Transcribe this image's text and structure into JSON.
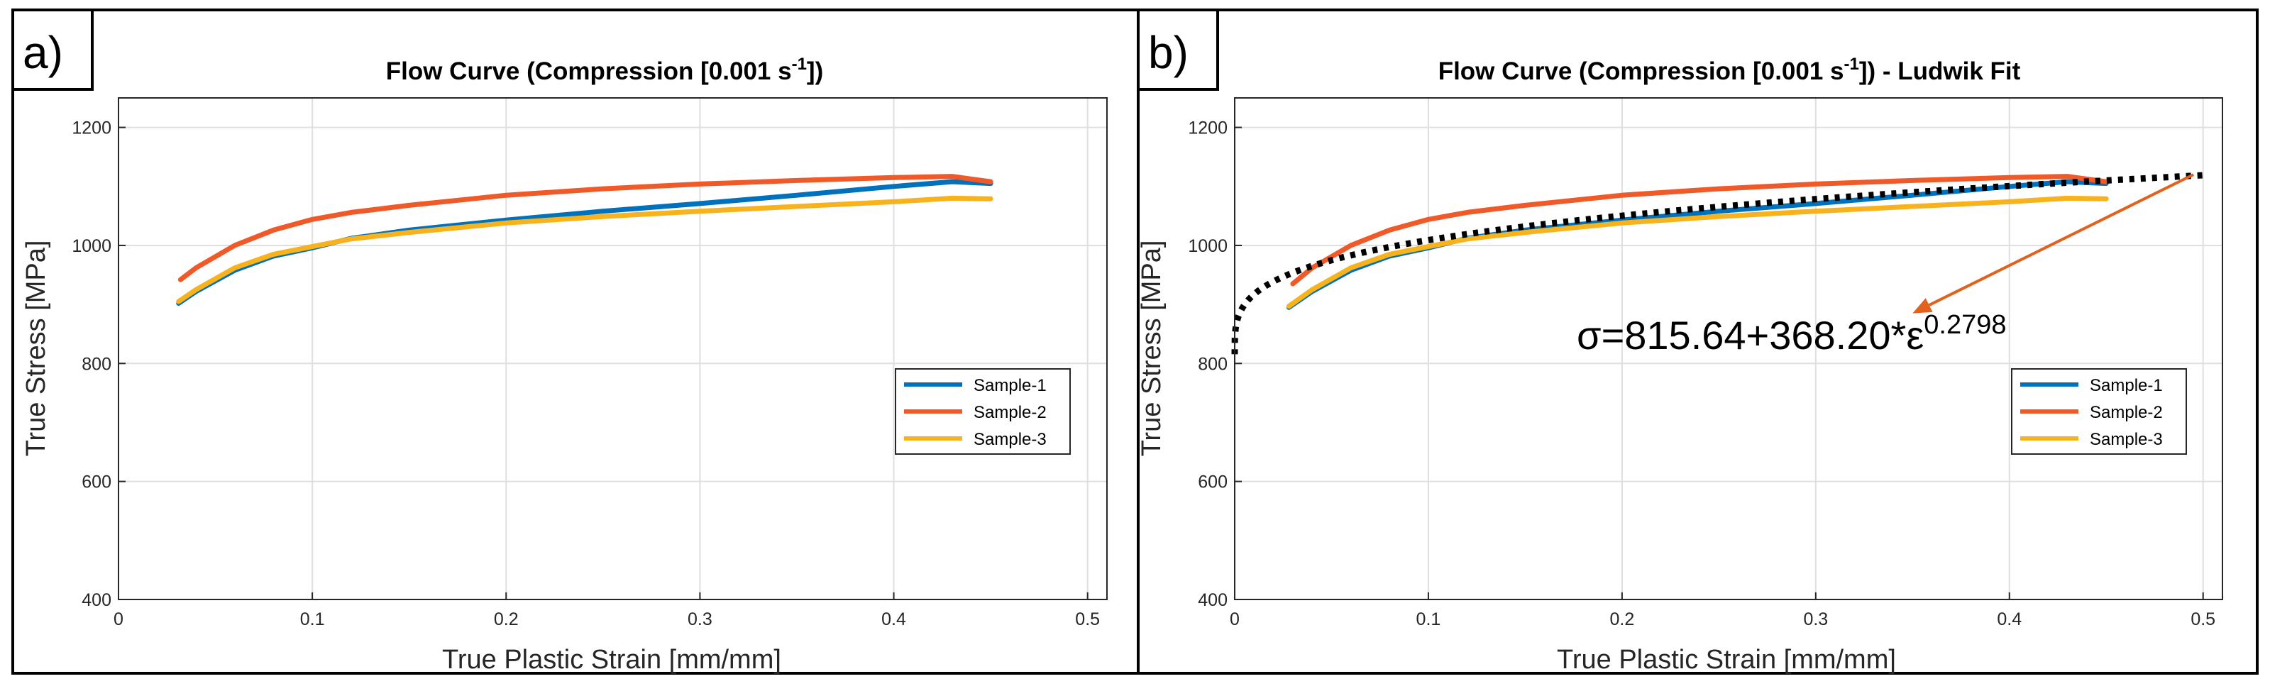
{
  "figure": {
    "colors": {
      "sample1": "#0072bd",
      "sample2": "#f05a28",
      "sample3": "#f7b21c",
      "fit": "#000000",
      "arrow": "#e2611d"
    }
  },
  "chart_data": [
    {
      "panel_label": "a)",
      "type": "line",
      "title_main": "Flow Curve (Compression [0.001 s",
      "title_sup": "-1",
      "title_tail": "])",
      "xlabel": "True Plastic Strain [mm/mm]",
      "ylabel": "True Stress [MPa]",
      "xlim": [
        0,
        0.51
      ],
      "ylim": [
        400,
        1250
      ],
      "xticks": [
        0,
        0.1,
        0.2,
        0.3,
        0.4,
        0.5
      ],
      "xtick_labels": [
        "0",
        "0.1",
        "0.2",
        "0.3",
        "0.4",
        "0.5"
      ],
      "yticks": [
        400,
        600,
        800,
        1000,
        1200
      ],
      "ytick_labels": [
        "400",
        "600",
        "800",
        "1000",
        "1200"
      ],
      "grid": true,
      "legend_position": "right",
      "legend": [
        "Sample-1",
        "Sample-2",
        "Sample-3"
      ],
      "series": [
        {
          "name": "Sample-1",
          "color": "#0072bd",
          "x": [
            0.031,
            0.04,
            0.06,
            0.08,
            0.1,
            0.12,
            0.15,
            0.2,
            0.25,
            0.3,
            0.35,
            0.4,
            0.43,
            0.45
          ],
          "y": [
            902,
            922,
            958,
            982,
            996,
            1012,
            1026,
            1043,
            1058,
            1071,
            1085,
            1100,
            1108,
            1105
          ]
        },
        {
          "name": "Sample-2",
          "color": "#f05a28",
          "x": [
            0.032,
            0.04,
            0.06,
            0.08,
            0.1,
            0.12,
            0.15,
            0.2,
            0.25,
            0.3,
            0.35,
            0.4,
            0.43,
            0.45
          ],
          "y": [
            942,
            962,
            1000,
            1026,
            1044,
            1056,
            1068,
            1085,
            1096,
            1104,
            1110,
            1115,
            1117,
            1108
          ]
        },
        {
          "name": "Sample-3",
          "color": "#f7b21c",
          "x": [
            0.031,
            0.04,
            0.06,
            0.08,
            0.1,
            0.12,
            0.15,
            0.2,
            0.25,
            0.3,
            0.35,
            0.4,
            0.43,
            0.45
          ],
          "y": [
            905,
            925,
            962,
            985,
            998,
            1011,
            1022,
            1038,
            1049,
            1058,
            1066,
            1074,
            1080,
            1079
          ]
        }
      ]
    },
    {
      "panel_label": "b)",
      "type": "line",
      "title_main": "Flow Curve (Compression [0.001 s",
      "title_sup": "-1",
      "title_tail": "]) - Ludwik Fit",
      "xlabel": "True Plastic Strain [mm/mm]",
      "ylabel": "True Stress [MPa]",
      "xlim": [
        0,
        0.51
      ],
      "ylim": [
        400,
        1250
      ],
      "xticks": [
        0,
        0.1,
        0.2,
        0.3,
        0.4,
        0.5
      ],
      "xtick_labels": [
        "0",
        "0.1",
        "0.2",
        "0.3",
        "0.4",
        "0.5"
      ],
      "yticks": [
        400,
        600,
        800,
        1000,
        1200
      ],
      "ytick_labels": [
        "400",
        "600",
        "800",
        "1000",
        "1200"
      ],
      "grid": true,
      "legend_position": "right",
      "legend": [
        "Sample-1",
        "Sample-2",
        "Sample-3"
      ],
      "series": [
        {
          "name": "Sample-1",
          "color": "#0072bd",
          "x": [
            0.028,
            0.04,
            0.06,
            0.08,
            0.1,
            0.12,
            0.15,
            0.2,
            0.25,
            0.3,
            0.35,
            0.4,
            0.43,
            0.45
          ],
          "y": [
            895,
            922,
            958,
            982,
            996,
            1012,
            1026,
            1043,
            1058,
            1071,
            1085,
            1100,
            1108,
            1105
          ]
        },
        {
          "name": "Sample-2",
          "color": "#f05a28",
          "x": [
            0.03,
            0.04,
            0.06,
            0.08,
            0.1,
            0.12,
            0.15,
            0.2,
            0.25,
            0.3,
            0.35,
            0.4,
            0.43,
            0.45
          ],
          "y": [
            935,
            962,
            1000,
            1026,
            1044,
            1056,
            1068,
            1085,
            1096,
            1104,
            1110,
            1115,
            1117,
            1108
          ]
        },
        {
          "name": "Sample-3",
          "color": "#f7b21c",
          "x": [
            0.028,
            0.04,
            0.06,
            0.08,
            0.1,
            0.12,
            0.15,
            0.2,
            0.25,
            0.3,
            0.35,
            0.4,
            0.43,
            0.45
          ],
          "y": [
            897,
            925,
            962,
            985,
            998,
            1011,
            1022,
            1038,
            1049,
            1058,
            1066,
            1074,
            1080,
            1079
          ]
        }
      ],
      "fit": {
        "model": "ludwik",
        "sigma0": 815.64,
        "K": 368.2,
        "n": 0.2798,
        "x_range": [
          0,
          0.5
        ],
        "equation_main": "σ=815.64+368.20*ε",
        "equation_exp": "0.2798",
        "arrow_from": [
          0.495,
          1120
        ],
        "arrow_to": [
          0.35,
          885
        ]
      }
    }
  ]
}
